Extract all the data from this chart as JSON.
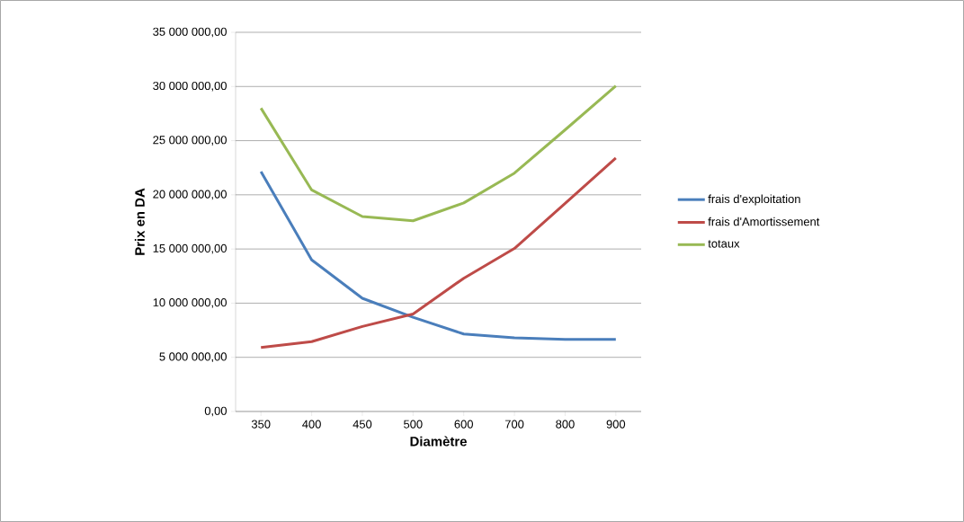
{
  "chart_data": {
    "type": "line",
    "xlabel": "Diamètre",
    "ylabel": "Prix en DA",
    "categories": [
      "350",
      "400",
      "450",
      "500",
      "600",
      "700",
      "800",
      "900"
    ],
    "series": [
      {
        "name": "frais d'exploitation",
        "color": "#4a7ebb",
        "values": [
          22150000,
          14000000,
          10450000,
          8700000,
          7150000,
          6800000,
          6650000,
          6650000
        ]
      },
      {
        "name": "frais d'Amortissement",
        "color": "#be4b48",
        "values": [
          5900000,
          6450000,
          7850000,
          9000000,
          12300000,
          15050000,
          19200000,
          23400000
        ]
      },
      {
        "name": "totaux",
        "color": "#98b954",
        "values": [
          28000000,
          20450000,
          18000000,
          17600000,
          19250000,
          22000000,
          26000000,
          30050000
        ]
      }
    ],
    "ylim": [
      0,
      35000000
    ],
    "yticks": [
      {
        "value": 0,
        "label": "0,00"
      },
      {
        "value": 5000000,
        "label": "5 000 000,00"
      },
      {
        "value": 10000000,
        "label": "10 000 000,00"
      },
      {
        "value": 15000000,
        "label": "15 000 000,00"
      },
      {
        "value": 20000000,
        "label": "20 000 000,00"
      },
      {
        "value": 25000000,
        "label": "25 000 000,00"
      },
      {
        "value": 30000000,
        "label": "30 000 000,00"
      },
      {
        "value": 35000000,
        "label": "35 000 000,00"
      }
    ],
    "grid": "y",
    "legend": "right",
    "marker": "none",
    "line_style": "solid"
  }
}
